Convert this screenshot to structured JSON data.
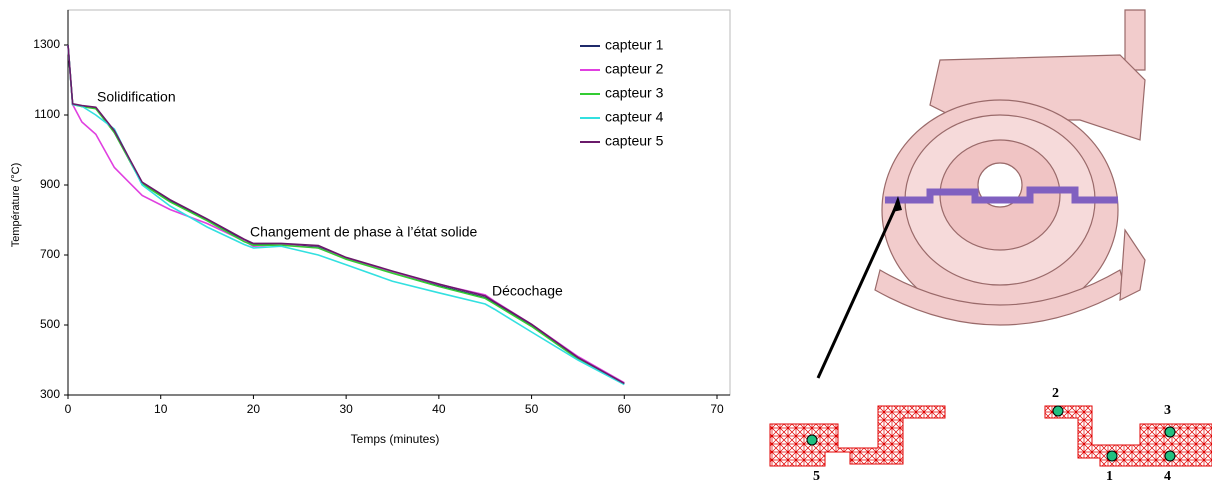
{
  "chart_data": {
    "type": "line",
    "xlabel": "Temps (minutes)",
    "ylabel": "Température (°C)",
    "x": [
      0,
      0.5,
      1.5,
      3,
      5,
      8,
      11,
      15,
      19,
      20,
      23,
      27,
      30,
      35,
      40,
      45,
      46,
      50,
      55,
      60
    ],
    "series": [
      {
        "name": "capteur 1",
        "color": "#1f2a6b",
        "values": [
          1300,
          1130,
          1125,
          1120,
          1050,
          905,
          855,
          800,
          740,
          730,
          730,
          722,
          690,
          650,
          612,
          578,
          562,
          498,
          405,
          332
        ]
      },
      {
        "name": "capteur 2",
        "color": "#e040e0",
        "values": [
          1300,
          1130,
          1080,
          1045,
          950,
          870,
          830,
          790,
          740,
          725,
          730,
          720,
          690,
          652,
          616,
          586,
          568,
          502,
          410,
          335
        ]
      },
      {
        "name": "capteur 3",
        "color": "#33cc33",
        "values": [
          1300,
          1130,
          1124,
          1118,
          1050,
          903,
          852,
          798,
          738,
          728,
          728,
          720,
          688,
          648,
          610,
          576,
          560,
          496,
          403,
          331
        ]
      },
      {
        "name": "capteur 4",
        "color": "#33e0e0",
        "values": [
          1300,
          1130,
          1125,
          1100,
          1060,
          900,
          840,
          780,
          730,
          720,
          725,
          700,
          672,
          625,
          592,
          560,
          545,
          480,
          400,
          330
        ]
      },
      {
        "name": "capteur 5",
        "color": "#6a1a6a",
        "values": [
          1300,
          1132,
          1127,
          1122,
          1055,
          908,
          858,
          803,
          745,
          733,
          733,
          727,
          693,
          654,
          617,
          583,
          566,
          502,
          407,
          333
        ]
      }
    ],
    "xlim": [
      0,
      70
    ],
    "xticks": [
      0,
      10,
      20,
      30,
      40,
      50,
      60,
      70
    ],
    "ylim": [
      300,
      1400
    ],
    "yticks": [
      300,
      500,
      700,
      900,
      1100,
      1300
    ],
    "annotations": [
      "Solidification",
      "Changement de phase à l’état solide",
      "Décochage"
    ]
  },
  "diagram": {
    "sensor_labels": [
      "2",
      "3",
      "1",
      "4",
      "5"
    ]
  }
}
